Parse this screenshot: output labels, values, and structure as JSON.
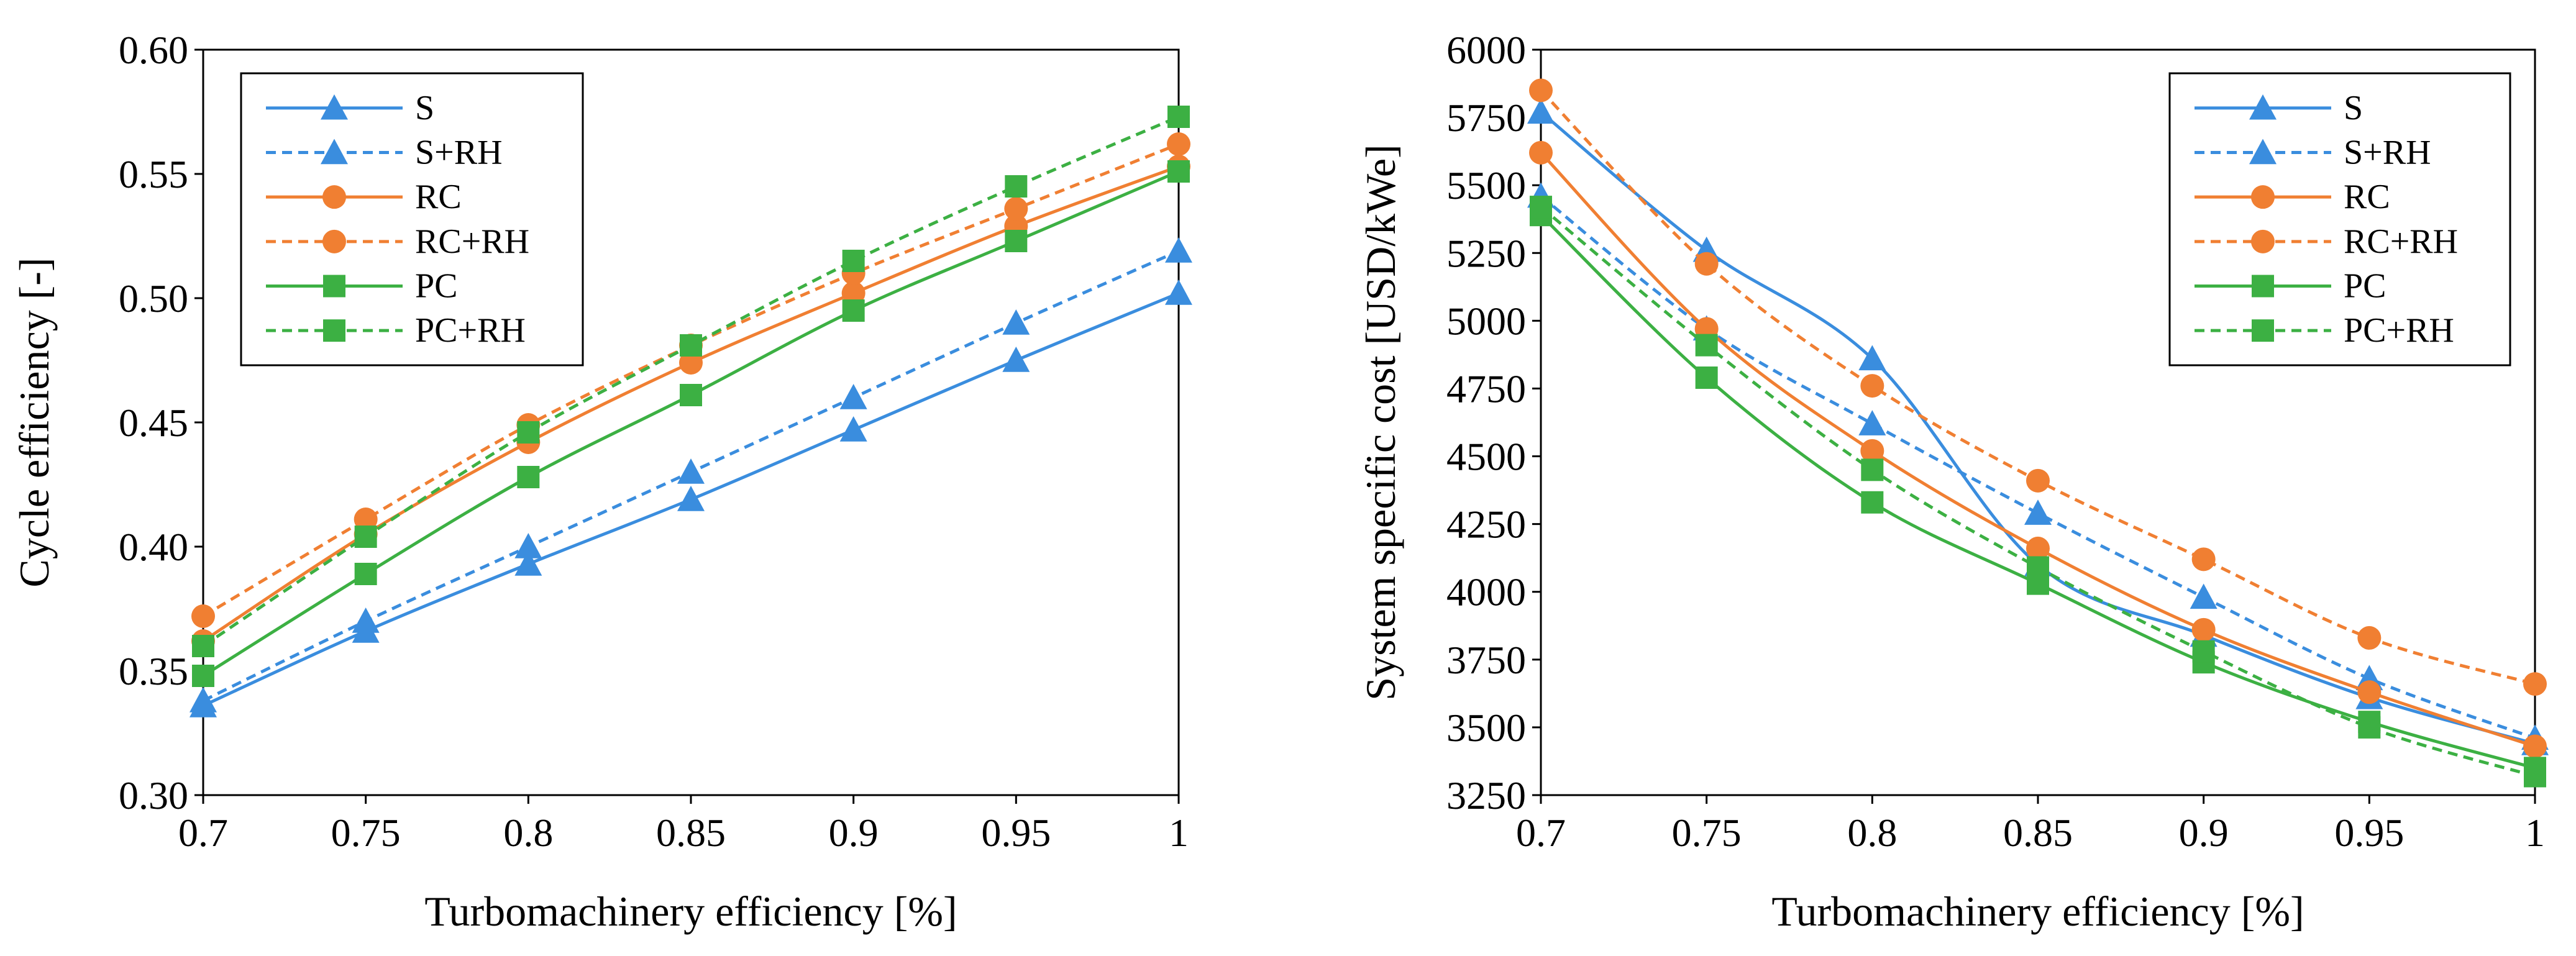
{
  "chart_data": [
    {
      "type": "line",
      "title": "",
      "xlabel": "Turbomachinery efficiency [%]",
      "ylabel": "Cycle efficiency [-]",
      "x": [
        0.7,
        0.75,
        0.8,
        0.85,
        0.9,
        0.95,
        1
      ],
      "x_tick_labels": [
        "0.7",
        "0.75",
        "0.8",
        "0.85",
        "0.9",
        "0.95",
        "1"
      ],
      "xlim": [
        0.7,
        1.0
      ],
      "ylim": [
        0.3,
        0.6
      ],
      "y_ticks": [
        0.3,
        0.35,
        0.4,
        0.45,
        0.5,
        0.55,
        0.6
      ],
      "y_tick_labels": [
        "0.30",
        "0.35",
        "0.40",
        "0.45",
        "0.50",
        "0.55",
        "0.60"
      ],
      "legend_position": "top-left",
      "series": [
        {
          "name": "S",
          "color": "#3a8dde",
          "dash": false,
          "marker": "triangle",
          "values": [
            0.336,
            0.366,
            0.393,
            0.419,
            0.447,
            0.475,
            0.502
          ]
        },
        {
          "name": "S+RH",
          "color": "#3a8dde",
          "dash": true,
          "marker": "triangle",
          "values": [
            0.338,
            0.37,
            0.4,
            0.43,
            0.46,
            0.49,
            0.519
          ]
        },
        {
          "name": "RC",
          "color": "#f07f32",
          "dash": false,
          "marker": "circle",
          "values": [
            0.362,
            0.405,
            0.442,
            0.474,
            0.502,
            0.529,
            0.553
          ]
        },
        {
          "name": "RC+RH",
          "color": "#f07f32",
          "dash": true,
          "marker": "circle",
          "values": [
            0.372,
            0.411,
            0.449,
            0.481,
            0.51,
            0.536,
            0.562
          ]
        },
        {
          "name": "PC",
          "color": "#3cb043",
          "dash": false,
          "marker": "square",
          "values": [
            0.348,
            0.389,
            0.428,
            0.461,
            0.495,
            0.523,
            0.551
          ]
        },
        {
          "name": "PC+RH",
          "color": "#3cb043",
          "dash": true,
          "marker": "square",
          "values": [
            0.36,
            0.404,
            0.446,
            0.481,
            0.515,
            0.545,
            0.573
          ]
        }
      ]
    },
    {
      "type": "line",
      "title": "",
      "xlabel": "Turbomachinery efficiency [%]",
      "ylabel": "System specific cost [USD/kWe]",
      "x": [
        0.7,
        0.75,
        0.8,
        0.85,
        0.9,
        0.95,
        1
      ],
      "x_tick_labels": [
        "0.7",
        "0.75",
        "0.8",
        "0.85",
        "0.9",
        "0.95",
        "1"
      ],
      "xlim": [
        0.7,
        1.0
      ],
      "ylim": [
        3250,
        6000
      ],
      "y_ticks": [
        3250,
        3500,
        3750,
        4000,
        4250,
        4500,
        4750,
        5000,
        5250,
        5500,
        5750,
        6000
      ],
      "y_tick_labels": [
        "3250",
        "3500",
        "3750",
        "4000",
        "4250",
        "4500",
        "4750",
        "5000",
        "5250",
        "5500",
        "5750",
        "6000"
      ],
      "legend_position": "top-right",
      "series": [
        {
          "name": "S",
          "color": "#3a8dde",
          "dash": false,
          "marker": "triangle",
          "values": [
            5770,
            5260,
            4860,
            4100,
            3840,
            3610,
            3440
          ]
        },
        {
          "name": "S+RH",
          "color": "#3a8dde",
          "dash": true,
          "marker": "triangle",
          "values": [
            5460,
            4970,
            4620,
            4290,
            3980,
            3680,
            3460
          ]
        },
        {
          "name": "RC",
          "color": "#f07f32",
          "dash": false,
          "marker": "circle",
          "values": [
            5620,
            4970,
            4520,
            4160,
            3860,
            3630,
            3430
          ]
        },
        {
          "name": "RC+RH",
          "color": "#f07f32",
          "dash": true,
          "marker": "circle",
          "values": [
            5850,
            5210,
            4760,
            4410,
            4120,
            3830,
            3660
          ]
        },
        {
          "name": "PC",
          "color": "#3cb043",
          "dash": false,
          "marker": "square",
          "values": [
            5390,
            4790,
            4330,
            4030,
            3740,
            3520,
            3350
          ]
        },
        {
          "name": "PC+RH",
          "color": "#3cb043",
          "dash": true,
          "marker": "square",
          "values": [
            5420,
            4910,
            4450,
            4090,
            3780,
            3500,
            3320
          ]
        }
      ]
    }
  ]
}
